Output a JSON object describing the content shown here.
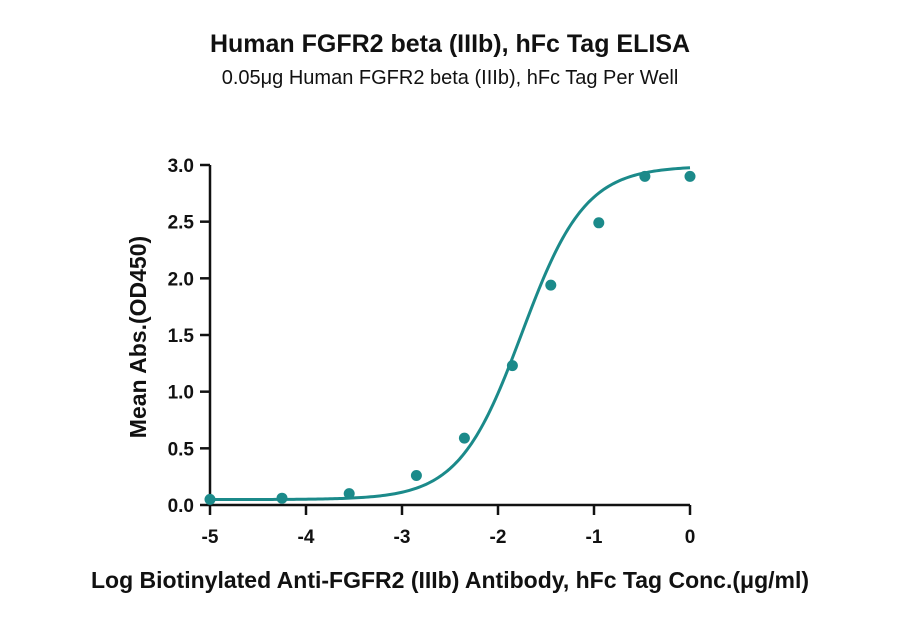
{
  "chart_data": {
    "type": "scatter",
    "title": "Human FGFR2 beta (IIIb), hFc Tag ELISA",
    "subtitle": "0.05μg Human FGFR2 beta (IIIb), hFc Tag Per Well",
    "xlabel": "Log Biotinylated Anti-FGFR2 (IIIb) Antibody, hFc Tag Conc.(μg/ml)",
    "ylabel": "Mean Abs.(OD450)",
    "xlim": [
      -5,
      0
    ],
    "ylim": [
      0,
      3
    ],
    "xticks": [
      -5,
      -4,
      -3,
      -2,
      -1,
      0
    ],
    "xtick_labels": [
      "-5",
      "-4",
      "-3",
      "-2",
      "-1",
      "0"
    ],
    "yticks": [
      0,
      0.5,
      1.0,
      1.5,
      2.0,
      2.5,
      3.0
    ],
    "ytick_labels": [
      "0.0",
      "0.5",
      "1.0",
      "1.5",
      "2.0",
      "2.5",
      "3.0"
    ],
    "grid": false,
    "color": "#1b8a8a",
    "series": [
      {
        "x": [
          -5.0,
          -4.25,
          -3.55,
          -2.85,
          -2.35,
          -1.85,
          -1.45,
          -0.95,
          -0.47,
          0.0
        ],
        "y": [
          0.05,
          0.06,
          0.1,
          0.26,
          0.59,
          1.23,
          1.94,
          2.49,
          2.9,
          2.9
        ]
      }
    ],
    "fit": {
      "model": "4PL",
      "bottom": 0.048,
      "top": 2.99,
      "log_ec50": -1.75,
      "hill": 1.32
    }
  }
}
